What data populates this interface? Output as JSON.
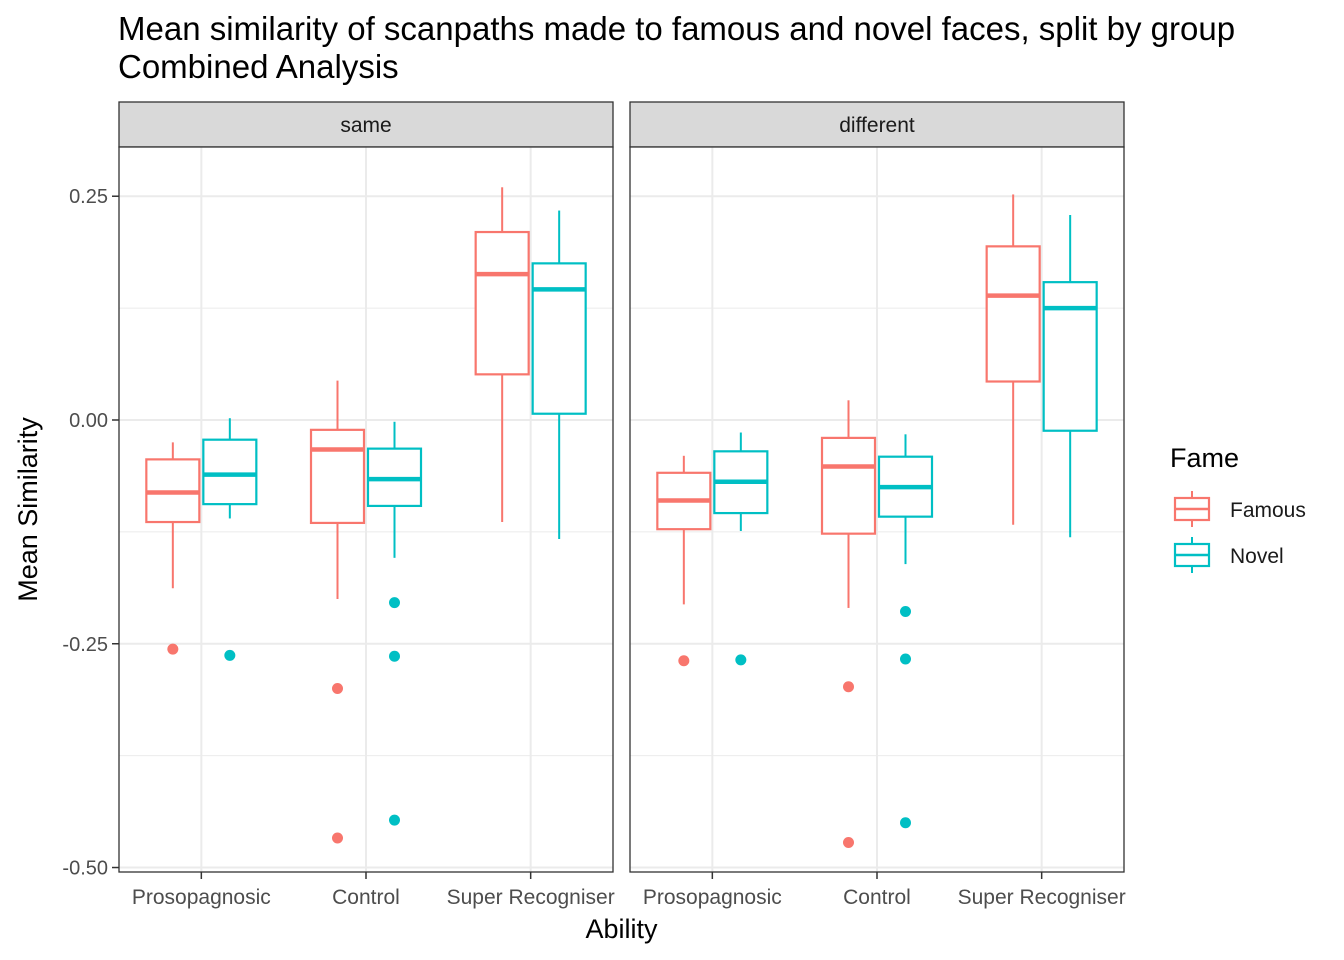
{
  "chart_data": {
    "type": "boxplot",
    "title": "Mean similarity of scanpaths made to famous and novel faces, split by group",
    "subtitle": "Combined Analysis",
    "xlabel": "Ability",
    "ylabel": "Mean Similarity",
    "ylim": [
      -0.505,
      0.305
    ],
    "yticks": [
      0.25,
      0.0,
      -0.25,
      -0.5
    ],
    "ytick_labels": [
      "0.25",
      "0.00",
      "-0.25",
      "-0.50"
    ],
    "categories": [
      "Prosopagnosic",
      "Control",
      "Super Recogniser"
    ],
    "grid": true,
    "legend": {
      "title": "Fame",
      "position": "right",
      "entries": [
        {
          "name": "Famous",
          "color": "#F8766D"
        },
        {
          "name": "Novel",
          "color": "#00BFC4"
        }
      ]
    },
    "panels": [
      {
        "label": "same",
        "series": [
          {
            "name": "Famous",
            "boxes": [
              {
                "category": "Prosopagnosic",
                "whisker_low": -0.188,
                "q1": -0.114,
                "median": -0.081,
                "q3": -0.044,
                "whisker_high": -0.025,
                "outliers": [
                  -0.256
                ]
              },
              {
                "category": "Control",
                "whisker_low": -0.2,
                "q1": -0.115,
                "median": -0.033,
                "q3": -0.011,
                "whisker_high": 0.044,
                "outliers": [
                  -0.3,
                  -0.467
                ]
              },
              {
                "category": "Super Recogniser",
                "whisker_low": -0.114,
                "q1": 0.051,
                "median": 0.163,
                "q3": 0.21,
                "whisker_high": 0.26,
                "outliers": []
              }
            ]
          },
          {
            "name": "Novel",
            "boxes": [
              {
                "category": "Prosopagnosic",
                "whisker_low": -0.11,
                "q1": -0.094,
                "median": -0.061,
                "q3": -0.022,
                "whisker_high": 0.002,
                "outliers": [
                  -0.263
                ]
              },
              {
                "category": "Control",
                "whisker_low": -0.154,
                "q1": -0.096,
                "median": -0.066,
                "q3": -0.032,
                "whisker_high": -0.002,
                "outliers": [
                  -0.204,
                  -0.264,
                  -0.447
                ]
              },
              {
                "category": "Super Recogniser",
                "whisker_low": -0.133,
                "q1": 0.007,
                "median": 0.146,
                "q3": 0.175,
                "whisker_high": 0.234,
                "outliers": []
              }
            ]
          }
        ]
      },
      {
        "label": "different",
        "series": [
          {
            "name": "Famous",
            "boxes": [
              {
                "category": "Prosopagnosic",
                "whisker_low": -0.206,
                "q1": -0.122,
                "median": -0.09,
                "q3": -0.059,
                "whisker_high": -0.04,
                "outliers": [
                  -0.269
                ]
              },
              {
                "category": "Control",
                "whisker_low": -0.21,
                "q1": -0.127,
                "median": -0.052,
                "q3": -0.02,
                "whisker_high": 0.022,
                "outliers": [
                  -0.298,
                  -0.472
                ]
              },
              {
                "category": "Super Recogniser",
                "whisker_low": -0.117,
                "q1": 0.043,
                "median": 0.139,
                "q3": 0.194,
                "whisker_high": 0.252,
                "outliers": []
              }
            ]
          },
          {
            "name": "Novel",
            "boxes": [
              {
                "category": "Prosopagnosic",
                "whisker_low": -0.124,
                "q1": -0.104,
                "median": -0.069,
                "q3": -0.035,
                "whisker_high": -0.014,
                "outliers": [
                  -0.268
                ]
              },
              {
                "category": "Control",
                "whisker_low": -0.161,
                "q1": -0.108,
                "median": -0.075,
                "q3": -0.041,
                "whisker_high": -0.016,
                "outliers": [
                  -0.214,
                  -0.267,
                  -0.45
                ]
              },
              {
                "category": "Super Recogniser",
                "whisker_low": -0.131,
                "q1": -0.012,
                "median": 0.125,
                "q3": 0.154,
                "whisker_high": 0.229,
                "outliers": []
              }
            ]
          }
        ]
      }
    ]
  }
}
